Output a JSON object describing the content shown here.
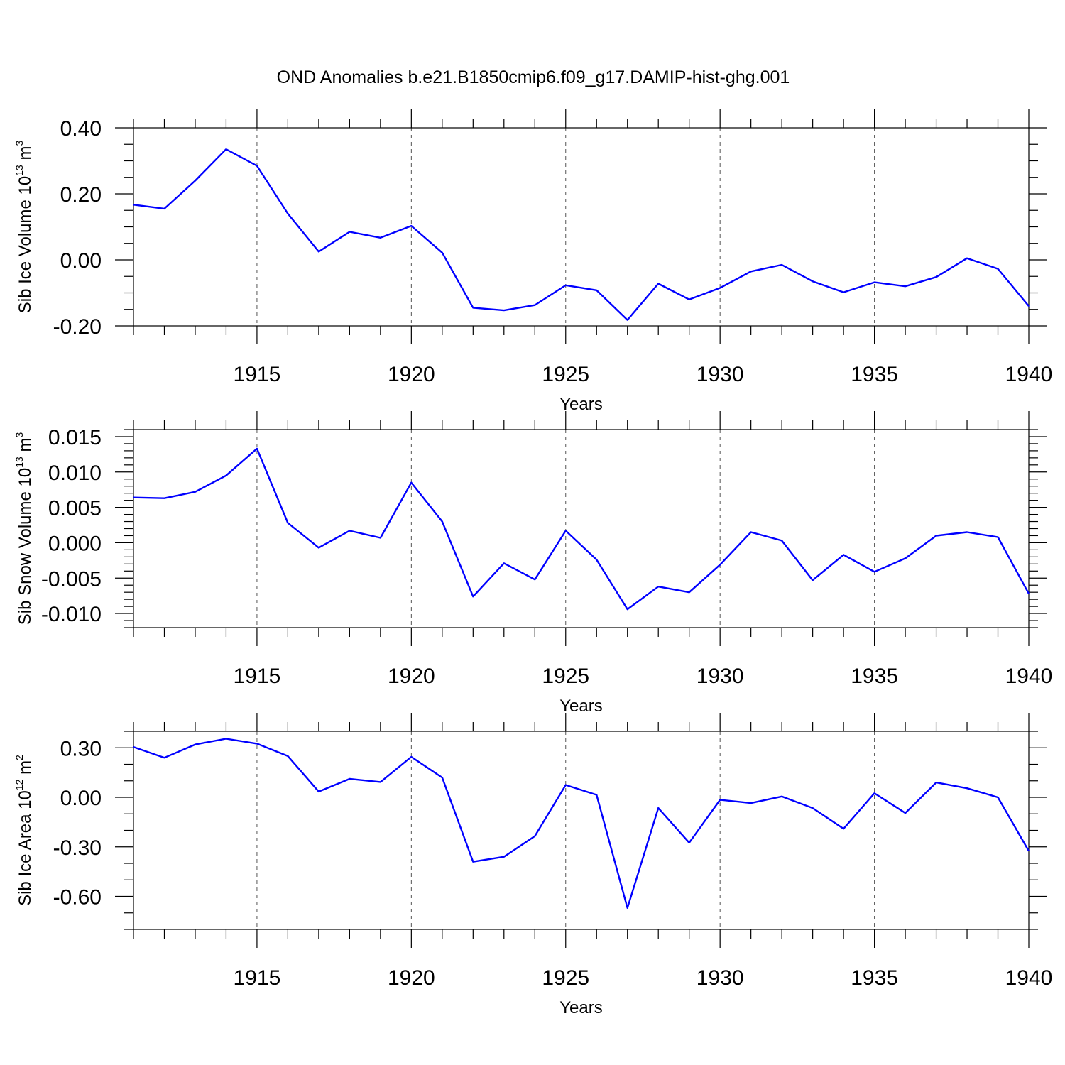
{
  "figure": {
    "title": "OND Anomalies b.e21.B1850cmip6.f09_g17.DAMIP-hist-ghg.001"
  },
  "colors": {
    "series": "#0000ff",
    "axes": "#000000",
    "grid": "#555555"
  },
  "chart_data": [
    {
      "type": "line",
      "ylabel": {
        "main": "Sib Ice Volume 10",
        "sup": "13",
        "unit": " m",
        "unit_sup": "3"
      },
      "xlabel": "Years",
      "xlim": [
        1911,
        1940
      ],
      "ylim": [
        -0.2,
        0.4
      ],
      "xticks": [
        1915,
        1920,
        1925,
        1930,
        1935,
        1940
      ],
      "xtick_labels": [
        "1915",
        "1920",
        "1925",
        "1930",
        "1935",
        "1940"
      ],
      "yticks": [
        -0.2,
        0,
        0.2,
        0.4
      ],
      "ytick_labels": [
        "-0.20",
        "0.00",
        "0.20",
        "0.40"
      ],
      "ytick_minor": 0.05,
      "grid": "vertical dashed at major x ticks",
      "series": [
        {
          "x": [
            1911,
            1912,
            1913,
            1914,
            1915,
            1916,
            1917,
            1918,
            1919,
            1920,
            1921,
            1922,
            1923,
            1924,
            1925,
            1926,
            1927,
            1928,
            1929,
            1930,
            1931,
            1932,
            1933,
            1934,
            1935,
            1936,
            1937,
            1938,
            1939,
            1940
          ],
          "values": [
            0.167,
            0.155,
            0.24,
            0.335,
            0.285,
            0.14,
            0.025,
            0.085,
            0.067,
            0.103,
            0.022,
            -0.145,
            -0.153,
            -0.137,
            -0.077,
            -0.092,
            -0.182,
            -0.072,
            -0.12,
            -0.085,
            -0.035,
            -0.015,
            -0.065,
            -0.098,
            -0.068,
            -0.08,
            -0.052,
            0.005,
            -0.027,
            -0.14
          ]
        }
      ]
    },
    {
      "type": "line",
      "ylabel": {
        "main": "Sib Snow Volume 10",
        "sup": "13",
        "unit": " m",
        "unit_sup": "3"
      },
      "xlabel": "Years",
      "xlim": [
        1911,
        1940
      ],
      "ylim": [
        -0.012,
        0.016
      ],
      "xticks": [
        1915,
        1920,
        1925,
        1930,
        1935,
        1940
      ],
      "xtick_labels": [
        "1915",
        "1920",
        "1925",
        "1930",
        "1935",
        "1940"
      ],
      "yticks": [
        -0.01,
        -0.005,
        0,
        0.005,
        0.01,
        0.015
      ],
      "ytick_labels": [
        "-0.010",
        "-0.005",
        "0.000",
        "0.005",
        "0.010",
        "0.015"
      ],
      "ytick_minor": 0.001,
      "grid": "vertical dashed at major x ticks",
      "series": [
        {
          "x": [
            1911,
            1912,
            1913,
            1914,
            1915,
            1916,
            1917,
            1918,
            1919,
            1920,
            1921,
            1922,
            1923,
            1924,
            1925,
            1926,
            1927,
            1928,
            1929,
            1930,
            1931,
            1932,
            1933,
            1934,
            1935,
            1936,
            1937,
            1938,
            1939,
            1940
          ],
          "values": [
            0.0064,
            0.0063,
            0.0072,
            0.0095,
            0.0133,
            0.0028,
            -0.0007,
            0.0017,
            0.0007,
            0.0085,
            0.003,
            -0.0076,
            -0.0029,
            -0.0052,
            0.0017,
            -0.0024,
            -0.0094,
            -0.0062,
            -0.007,
            -0.0031,
            0.0015,
            0.0003,
            -0.0053,
            -0.0017,
            -0.0041,
            -0.0022,
            0.001,
            0.0015,
            0.0008,
            -0.0072
          ]
        }
      ]
    },
    {
      "type": "line",
      "ylabel": {
        "main": "Sib Ice Area 10",
        "sup": "12",
        "unit": " m",
        "unit_sup": "2"
      },
      "xlabel": "Years",
      "xlim": [
        1911,
        1940
      ],
      "ylim": [
        -0.8,
        0.4
      ],
      "xticks": [
        1915,
        1920,
        1925,
        1930,
        1935,
        1940
      ],
      "xtick_labels": [
        "1915",
        "1920",
        "1925",
        "1930",
        "1935",
        "1940"
      ],
      "yticks": [
        -0.6,
        -0.3,
        0,
        0.3
      ],
      "ytick_labels": [
        "-0.60",
        "-0.30",
        "0.00",
        "0.30"
      ],
      "ytick_minor": 0.1,
      "grid": "vertical dashed at major x ticks",
      "series": [
        {
          "x": [
            1911,
            1912,
            1913,
            1914,
            1915,
            1916,
            1917,
            1918,
            1919,
            1920,
            1921,
            1922,
            1923,
            1924,
            1925,
            1926,
            1927,
            1928,
            1929,
            1930,
            1931,
            1932,
            1933,
            1934,
            1935,
            1936,
            1937,
            1938,
            1939,
            1940
          ],
          "values": [
            0.305,
            0.24,
            0.32,
            0.355,
            0.325,
            0.25,
            0.035,
            0.112,
            0.093,
            0.245,
            0.12,
            -0.39,
            -0.36,
            -0.235,
            0.075,
            0.015,
            -0.67,
            -0.065,
            -0.275,
            -0.015,
            -0.035,
            0.005,
            -0.065,
            -0.19,
            0.025,
            -0.095,
            0.09,
            0.055,
            0.0,
            -0.325
          ]
        }
      ]
    }
  ]
}
